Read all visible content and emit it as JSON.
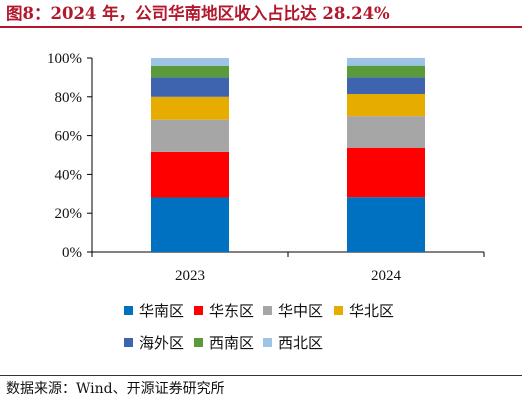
{
  "figure": {
    "title": "图8：2024 年，公司华南地区收入占比达 28.24%",
    "source": "数据来源：Wind、开源证券研究所"
  },
  "chart_data": {
    "type": "bar",
    "stacked": true,
    "percent": true,
    "categories": [
      "2023",
      "2024"
    ],
    "yticks": [
      "0%",
      "20%",
      "40%",
      "60%",
      "80%",
      "100%"
    ],
    "ylim": [
      0,
      100
    ],
    "legend_position": "bottom",
    "series": [
      {
        "name": "华南区",
        "color": "#0070c0",
        "values": [
          28.1,
          28.24
        ]
      },
      {
        "name": "华东区",
        "color": "#ff0000",
        "values": [
          23.5,
          25.5
        ]
      },
      {
        "name": "华中区",
        "color": "#a6a6a6",
        "values": [
          16.6,
          16.3
        ]
      },
      {
        "name": "华北区",
        "color": "#e6ad00",
        "values": [
          11.8,
          11.4
        ]
      },
      {
        "name": "海外区",
        "color": "#3e64b0",
        "values": [
          10.0,
          8.6
        ]
      },
      {
        "name": "西南区",
        "color": "#5b9a3a",
        "values": [
          6.0,
          6.0
        ]
      },
      {
        "name": "西北区",
        "color": "#9dc3e6",
        "values": [
          4.0,
          4.0
        ]
      }
    ]
  }
}
